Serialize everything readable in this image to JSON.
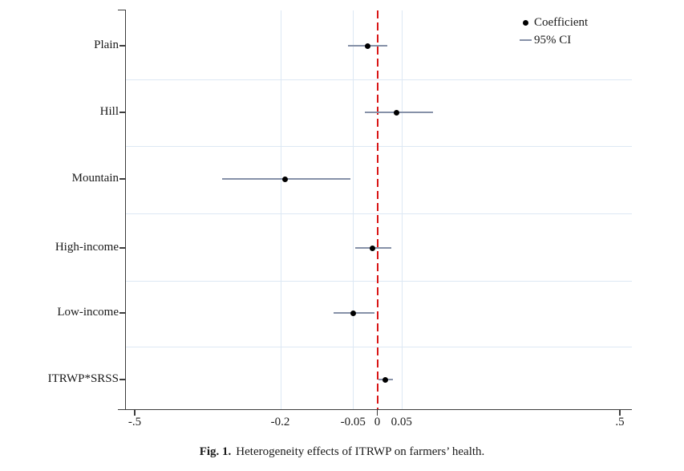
{
  "figure": {
    "caption_label": "Fig. 1.",
    "caption_text": "Heterogeneity effects of ITRWP on farmers’ health."
  },
  "legend": {
    "coefficient_label": "Coefficient",
    "ci_label": "— 95% CI",
    "ci_text": "95% CI"
  },
  "colors": {
    "ci_line": "#8691a8",
    "coefficient_point": "#000000",
    "zero_reference_line": "#d91616",
    "gridline": "#dde8f4",
    "axis": "#3d3d3d",
    "background": "#ffffff"
  },
  "chart_data": {
    "type": "scatter",
    "subtype": "coefficient-forest-plot",
    "title": "",
    "xlabel": "",
    "ylabel": "",
    "categories": [
      "Plain",
      "Hill",
      "Mountain",
      "High-income",
      "Low-income",
      "ITRWP*SRSS"
    ],
    "series": [
      {
        "name": "Coefficient",
        "values": [
          -0.02,
          0.04,
          -0.19,
          -0.01,
          -0.05,
          0.017
        ],
        "ci_lower": [
          -0.06,
          -0.026,
          -0.32,
          -0.045,
          -0.09,
          0.002
        ],
        "ci_upper": [
          0.021,
          0.115,
          -0.055,
          0.029,
          -0.005,
          0.032
        ]
      }
    ],
    "xlim": [
      -0.5,
      0.5
    ],
    "x_ticks": [
      {
        "value": -0.5,
        "label": "-.5",
        "tick_mark": true
      },
      {
        "value": -0.2,
        "label": "-0.2",
        "tick_mark": false
      },
      {
        "value": -0.05,
        "label": "-0.05",
        "tick_mark": false
      },
      {
        "value": 0,
        "label": "0",
        "tick_mark": true
      },
      {
        "value": 0.05,
        "label": "0.05",
        "tick_mark": false
      },
      {
        "value": 0.5,
        "label": ".5",
        "tick_mark": true
      }
    ],
    "grid_x_values": [
      -0.2,
      -0.05,
      0.05
    ],
    "reference_line_x": 0,
    "grid": "horizontal lines midway between categories; vertical lines at interior labeled ticks",
    "legend_position": "top-right, no frame"
  }
}
